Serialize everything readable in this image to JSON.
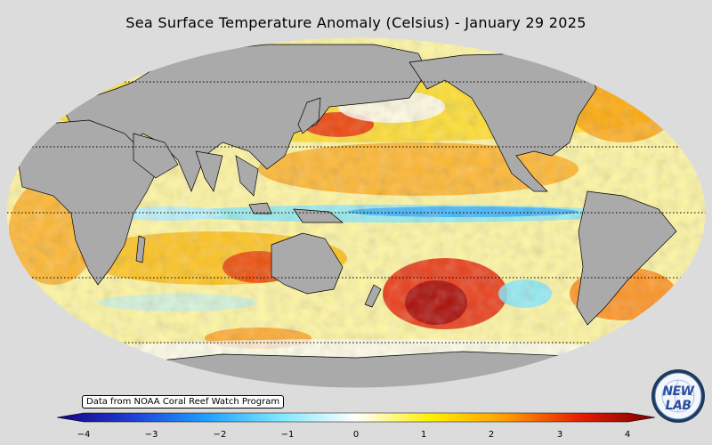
{
  "map": {
    "title": "Sea Surface Temperature Anomaly (Celsius) - January 29 2025",
    "credit": "Data from NOAA Coral Reef Watch Program",
    "logo_text": "NEW LAB",
    "colorbar": {
      "min": -4,
      "max": 4,
      "tick_labels": [
        "−4",
        "−3",
        "−2",
        "−1",
        "0",
        "1",
        "2",
        "3",
        "4"
      ],
      "colors": [
        "#1a0080",
        "#1d3fd6",
        "#1ea0ff",
        "#7fe8ff",
        "#ffffff",
        "#ffef00",
        "#ff9c00",
        "#e81c00",
        "#7a0000"
      ]
    },
    "land_color": "#aaaaaa",
    "ocean_background": "#ffffff"
  }
}
